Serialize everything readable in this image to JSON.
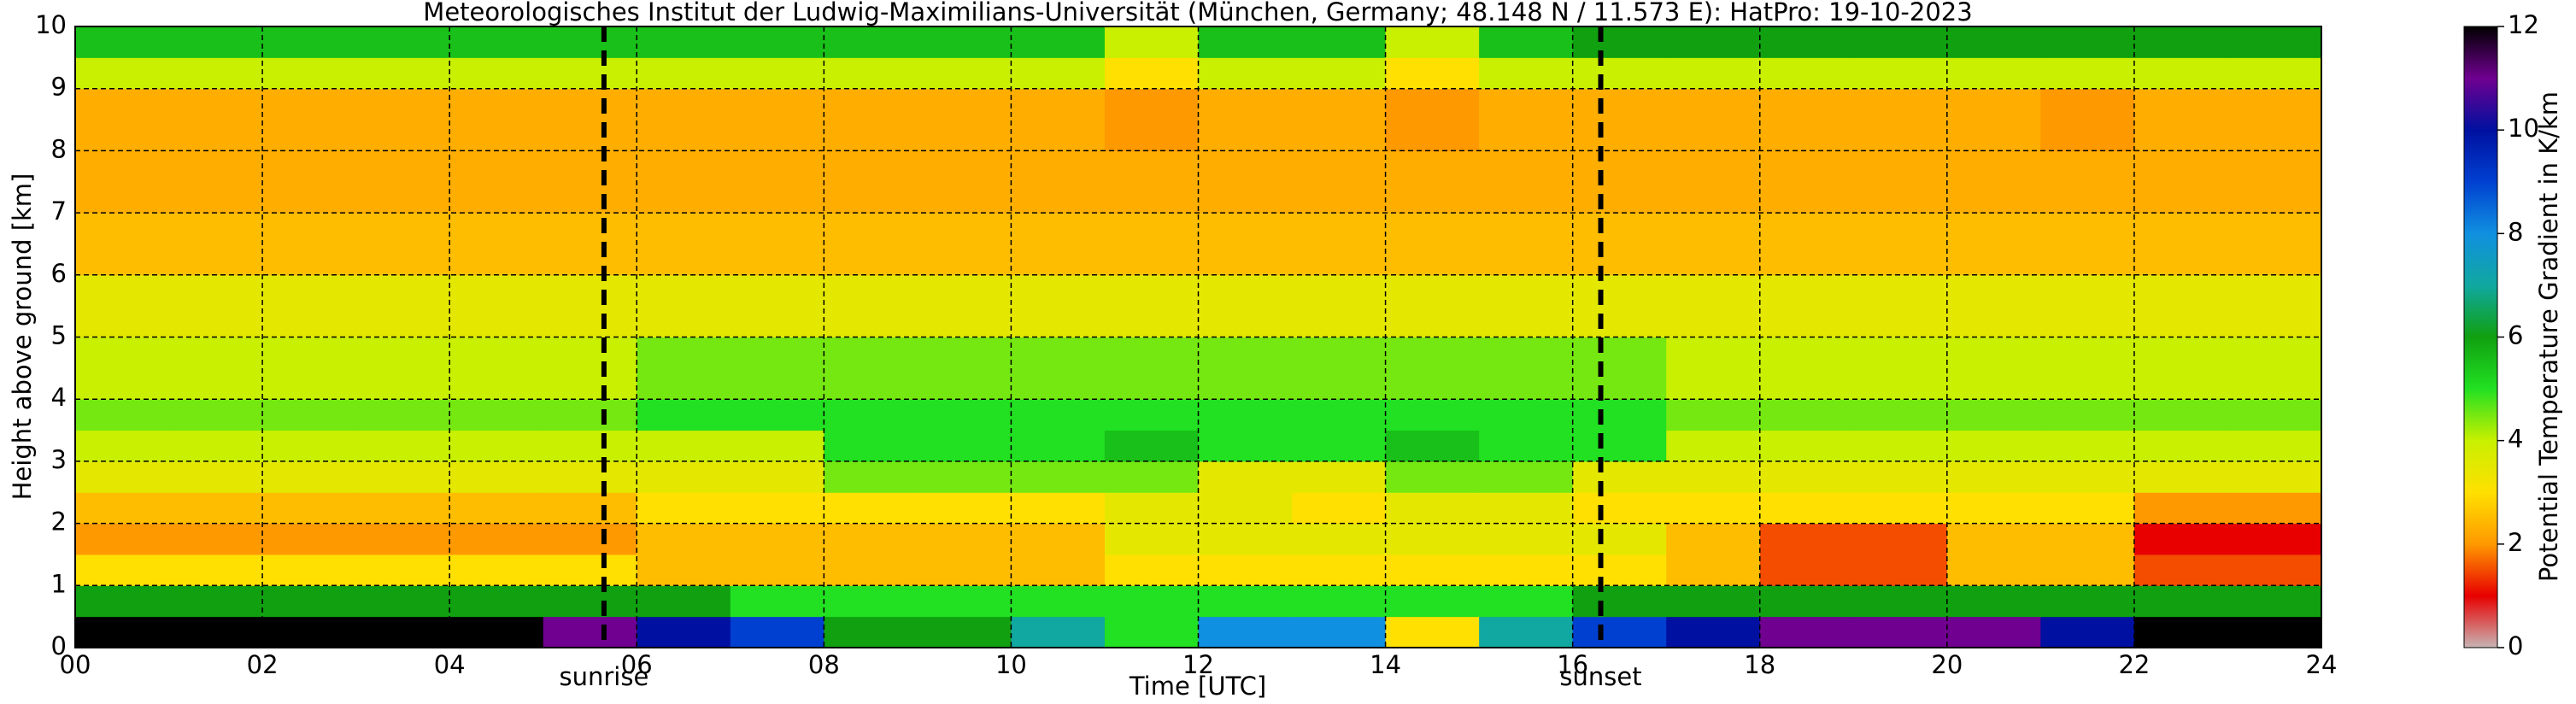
{
  "chart_data": {
    "type": "heatmap",
    "title": "Meteorologisches Institut der Ludwig-Maximilians-Universität (München, Germany; 48.148 N / 11.573 E):    HatPro: 19-10-2023",
    "xlabel": "Time [UTC]",
    "ylabel": "Height above ground [km]",
    "colorbar_label": "Potential Temperature Gradient in K/km",
    "x": [
      0,
      1,
      2,
      3,
      4,
      5,
      6,
      7,
      8,
      9,
      10,
      11,
      12,
      13,
      14,
      15,
      16,
      17,
      18,
      19,
      20,
      21,
      22,
      23,
      24
    ],
    "y": [
      0,
      0.5,
      1,
      1.5,
      2,
      2.5,
      3,
      3.5,
      4,
      5,
      6,
      7,
      8,
      9,
      9.5,
      10
    ],
    "values": [
      [
        12,
        12,
        12,
        12,
        12,
        11,
        10,
        9,
        6,
        6,
        7,
        5,
        8,
        8,
        3,
        7,
        9,
        10,
        11,
        11,
        11,
        10,
        12,
        12
      ],
      [
        6,
        6,
        6,
        6,
        6,
        6,
        6,
        5,
        5,
        5,
        5,
        5,
        5,
        5,
        5,
        5,
        6,
        6,
        6,
        6,
        6,
        6,
        6,
        6
      ],
      [
        3,
        3,
        3,
        3,
        3,
        3,
        2.5,
        2.5,
        2.5,
        2.5,
        2.5,
        3,
        3,
        3,
        3,
        3,
        3,
        2.5,
        1.5,
        1.5,
        2.5,
        2.5,
        1.5,
        1.5
      ],
      [
        2,
        2,
        2,
        2,
        2,
        2,
        2.5,
        2.5,
        2.5,
        2.5,
        2.5,
        3.5,
        3.5,
        3.5,
        3.5,
        3.5,
        3.5,
        2.5,
        1.5,
        1.5,
        2.5,
        2.5,
        1,
        1
      ],
      [
        2.5,
        2.5,
        2.5,
        2.5,
        2.5,
        2.5,
        3,
        3,
        3,
        3,
        3,
        3.5,
        3.5,
        3,
        3.5,
        3.5,
        3,
        3,
        3,
        3,
        3,
        3,
        2,
        2
      ],
      [
        3.5,
        3.5,
        3.5,
        3.5,
        3.5,
        3.5,
        3.5,
        3.5,
        4.5,
        4.5,
        4.5,
        4.5,
        3.5,
        3.5,
        4.5,
        4.5,
        3.5,
        3.5,
        3.5,
        3.5,
        3.5,
        3.5,
        3.5,
        3.5
      ],
      [
        4,
        4,
        4,
        4,
        4,
        4,
        4,
        4,
        5,
        5,
        5,
        5.5,
        5,
        5,
        5.5,
        5,
        5,
        4,
        4,
        4,
        4,
        4,
        4,
        4
      ],
      [
        4.5,
        4.5,
        4.5,
        4.5,
        4.5,
        4.5,
        5,
        5,
        5,
        5,
        5,
        5,
        5,
        5,
        5,
        5,
        5,
        4.5,
        4.5,
        4.5,
        4.5,
        4.5,
        4.5,
        4.5
      ],
      [
        4,
        4,
        4,
        4,
        4,
        4,
        4.5,
        4.5,
        4.5,
        4.5,
        4.5,
        4.5,
        4.5,
        4.5,
        4.5,
        4.5,
        4.5,
        4,
        4,
        4,
        4,
        4,
        4,
        4
      ],
      [
        3.5,
        3.5,
        3.5,
        3.5,
        3.5,
        3.5,
        3.5,
        3.5,
        3.5,
        3.5,
        3.5,
        3.5,
        3.5,
        3.5,
        3.5,
        3.5,
        3.5,
        3.5,
        3.5,
        3.5,
        3.5,
        3.5,
        3.5,
        3.5
      ],
      [
        2.5,
        2.5,
        2.5,
        2.5,
        2.5,
        2.5,
        2.5,
        2.5,
        2.5,
        2.5,
        2.5,
        2.5,
        2.5,
        2.5,
        2.5,
        2.5,
        2.5,
        2.5,
        2.5,
        2.5,
        2.5,
        2.5,
        2.5,
        2.5
      ],
      [
        2.3,
        2.3,
        2.3,
        2.3,
        2.3,
        2.3,
        2.3,
        2.3,
        2.3,
        2.3,
        2.3,
        2.3,
        2.3,
        2.3,
        2.3,
        2.3,
        2.3,
        2.3,
        2.3,
        2.3,
        2.3,
        2.3,
        2.3,
        2.3
      ],
      [
        2.3,
        2.3,
        2.3,
        2.3,
        2.3,
        2.3,
        2.3,
        2.3,
        2.3,
        2.3,
        2.3,
        2,
        2.3,
        2.3,
        2,
        2.3,
        2.3,
        2.3,
        2.3,
        2.3,
        2.3,
        2,
        2.3,
        2.3
      ],
      [
        4,
        4,
        4,
        4,
        4,
        4,
        4,
        4,
        4,
        4,
        4,
        3,
        4,
        4,
        3,
        4,
        4,
        4,
        4,
        4,
        4,
        4,
        4,
        4
      ],
      [
        5.5,
        5.5,
        5.5,
        5.5,
        5.5,
        5.5,
        5.5,
        5.5,
        5.5,
        5.5,
        5.5,
        4,
        5.5,
        5.5,
        4,
        5.5,
        6,
        6,
        6,
        6,
        6,
        6,
        6,
        6
      ]
    ],
    "xlim": [
      0,
      24
    ],
    "ylim": [
      0,
      10
    ],
    "xticks": [
      {
        "value": 0,
        "label": "00"
      },
      {
        "value": 2,
        "label": "02"
      },
      {
        "value": 4,
        "label": "04"
      },
      {
        "value": 6,
        "label": "06"
      },
      {
        "value": 8,
        "label": "08"
      },
      {
        "value": 10,
        "label": "10"
      },
      {
        "value": 12,
        "label": "12"
      },
      {
        "value": 14,
        "label": "14"
      },
      {
        "value": 16,
        "label": "16"
      },
      {
        "value": 18,
        "label": "18"
      },
      {
        "value": 20,
        "label": "20"
      },
      {
        "value": 22,
        "label": "22"
      },
      {
        "value": 24,
        "label": "24"
      }
    ],
    "yticks": [
      0,
      1,
      2,
      3,
      4,
      5,
      6,
      7,
      8,
      9,
      10
    ],
    "clim": [
      0,
      12
    ],
    "cticks": [
      0,
      2,
      4,
      6,
      8,
      10,
      12
    ],
    "colorscale": [
      [
        0,
        "#c8b4b4"
      ],
      [
        1,
        "#e80000"
      ],
      [
        2,
        "#ff9900"
      ],
      [
        3,
        "#ffe000"
      ],
      [
        4,
        "#c8f000"
      ],
      [
        5,
        "#22e022"
      ],
      [
        6,
        "#10a010"
      ],
      [
        7,
        "#10a8a0"
      ],
      [
        8,
        "#1090e0"
      ],
      [
        9,
        "#0040d0"
      ],
      [
        10,
        "#0010a0"
      ],
      [
        11,
        "#700090"
      ],
      [
        12,
        "#000000"
      ]
    ],
    "grid": true,
    "markers": [
      {
        "x": 5.65,
        "label": "sunrise"
      },
      {
        "x": 16.3,
        "label": "sunset"
      }
    ]
  }
}
